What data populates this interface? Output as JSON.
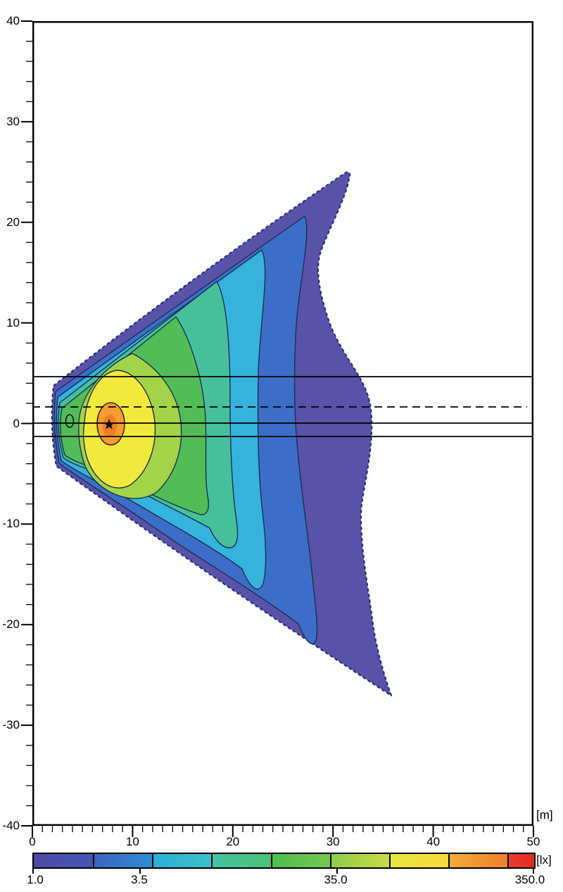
{
  "axes": {
    "x": {
      "unit_label": "[m]",
      "labels": [
        "0",
        "10",
        "20",
        "30",
        "40",
        "50"
      ],
      "range": [
        0,
        50
      ]
    },
    "y": {
      "labels": [
        "40",
        "30",
        "20",
        "10",
        "0",
        "-10",
        "-20",
        "-30",
        "-40"
      ],
      "range": [
        -40,
        40
      ]
    }
  },
  "colorbar": {
    "unit_label": "[lx]",
    "tick_labels": [
      "1.0",
      "3.5",
      "35.0",
      "350.0"
    ],
    "labeled_values": [
      1.0,
      3.5,
      35.0,
      350.0
    ],
    "levels": [
      1,
      2,
      4,
      8,
      16,
      32,
      64,
      128,
      256,
      350
    ],
    "segments": [
      {
        "from": "#4d49a5",
        "to": "#4156b5"
      },
      {
        "from": "#3b63c0",
        "to": "#2f8ed2"
      },
      {
        "from": "#2fadda",
        "to": "#3cc0c8"
      },
      {
        "from": "#43c1a4",
        "to": "#4cc173"
      },
      {
        "from": "#4cbd52",
        "to": "#76c74e"
      },
      {
        "from": "#8fcc4b",
        "to": "#c8dc45"
      },
      {
        "from": "#e6e740",
        "to": "#f6d83a"
      },
      {
        "from": "#f4ac36",
        "to": "#ed7e2e"
      },
      {
        "from": "#e73c2c",
        "to": "#e22820"
      }
    ]
  },
  "colors": {
    "bands": [
      "#5852a8",
      "#3c6ec9",
      "#35b3dc",
      "#46c09b",
      "#52bd57",
      "#a2d348",
      "#f1e93b",
      "#f49d31",
      "#ee7e27"
    ],
    "contour_line": "#1b3050",
    "boundary_dash": "#232d7d",
    "hotspot_ring": "#43230c",
    "road_line": "#000000",
    "marker": "#111111",
    "axis": "#000000"
  },
  "chart_data": {
    "type": "heatmap",
    "subtype": "isolux-contour-plot",
    "title": "",
    "xlabel": "[m]",
    "ylabel": "[m]",
    "xlim": [
      0,
      50
    ],
    "ylim": [
      -40,
      40
    ],
    "x_major_ticks": [
      0,
      10,
      20,
      30,
      40,
      50
    ],
    "y_major_ticks": [
      40,
      30,
      20,
      10,
      0,
      -10,
      -20,
      -30,
      -40
    ],
    "x_minor_tick_step": 1,
    "y_minor_tick_step": 2,
    "grid": false,
    "legend_position": "bottom-colorbar",
    "colorbar": {
      "unit": "[lx]",
      "min": 1.0,
      "max": 350.0,
      "scale": "log",
      "labeled_ticks": [
        1.0,
        3.5,
        35.0,
        350.0
      ],
      "contour_levels_lx": [
        1,
        2,
        4,
        8,
        16,
        32,
        64,
        128,
        256
      ]
    },
    "max_illuminance_point": {
      "x_m": 7.6,
      "y_m": 0.0,
      "marker": "star"
    },
    "luminaire_symbol": {
      "x_m": 3.7,
      "y_m": 0.2,
      "marker": "small-ellipse"
    },
    "road_lines_y_m": {
      "solid": [
        4.7,
        0.0,
        -1.3
      ],
      "dashed_centerline": 1.65
    },
    "isolux_1lx_extent": {
      "left_apex_x_m": 2.1,
      "top_tip": [
        31.2,
        25.0
      ],
      "right_max_x_m": 33.8,
      "bottom_tip": [
        35.8,
        -27.1
      ]
    },
    "contour_crossings_at_y0_x_m": {
      "128": 8.8,
      "64": 12.2,
      "32": 14.8,
      "16": 17.3,
      "8": 19.7,
      "4": 22.5,
      "2": 26.5,
      "1": 33.8
    }
  }
}
